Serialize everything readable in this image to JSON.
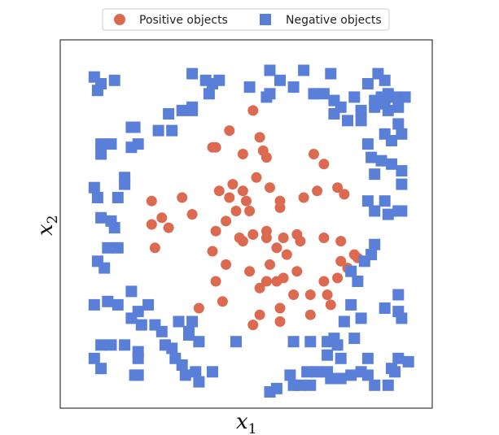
{
  "chart_data": {
    "type": "scatter",
    "title": "",
    "xlabel": "x",
    "xlabel_sub": "1",
    "ylabel": "x",
    "ylabel_sub": "2",
    "xlim": [
      0,
      1
    ],
    "ylim": [
      0,
      1
    ],
    "grid": false,
    "ticks": false,
    "legend_position": "top-center",
    "series": [
      {
        "name": "Positive objects",
        "marker": "circle",
        "color": "#db6a50",
        "points": [
          [
            0.45,
            0.78
          ],
          [
            0.52,
            0.84
          ],
          [
            0.54,
            0.76
          ],
          [
            0.4,
            0.73
          ],
          [
            0.41,
            0.73
          ],
          [
            0.49,
            0.71
          ],
          [
            0.55,
            0.72
          ],
          [
            0.56,
            0.7
          ],
          [
            0.7,
            0.71
          ],
          [
            0.73,
            0.68
          ],
          [
            0.53,
            0.64
          ],
          [
            0.57,
            0.61
          ],
          [
            0.46,
            0.62
          ],
          [
            0.42,
            0.6
          ],
          [
            0.49,
            0.6
          ],
          [
            0.71,
            0.6
          ],
          [
            0.77,
            0.61
          ],
          [
            0.79,
            0.59
          ],
          [
            0.22,
            0.57
          ],
          [
            0.31,
            0.58
          ],
          [
            0.45,
            0.58
          ],
          [
            0.5,
            0.57
          ],
          [
            0.6,
            0.57
          ],
          [
            0.67,
            0.58
          ],
          [
            0.6,
            0.55
          ],
          [
            0.47,
            0.54
          ],
          [
            0.51,
            0.54
          ],
          [
            0.25,
            0.52
          ],
          [
            0.34,
            0.53
          ],
          [
            0.22,
            0.5
          ],
          [
            0.27,
            0.49
          ],
          [
            0.44,
            0.51
          ],
          [
            0.41,
            0.48
          ],
          [
            0.56,
            0.48
          ],
          [
            0.65,
            0.47
          ],
          [
            0.52,
            0.47
          ],
          [
            0.48,
            0.46
          ],
          [
            0.49,
            0.45
          ],
          [
            0.56,
            0.46
          ],
          [
            0.61,
            0.46
          ],
          [
            0.66,
            0.45
          ],
          [
            0.73,
            0.46
          ],
          [
            0.78,
            0.45
          ],
          [
            0.59,
            0.43
          ],
          [
            0.62,
            0.41
          ],
          [
            0.23,
            0.43
          ],
          [
            0.4,
            0.42
          ],
          [
            0.82,
            0.41
          ],
          [
            0.44,
            0.38
          ],
          [
            0.57,
            0.38
          ],
          [
            0.78,
            0.39
          ],
          [
            0.83,
            0.4
          ],
          [
            0.51,
            0.36
          ],
          [
            0.65,
            0.36
          ],
          [
            0.8,
            0.37
          ],
          [
            0.41,
            0.33
          ],
          [
            0.56,
            0.33
          ],
          [
            0.59,
            0.33
          ],
          [
            0.61,
            0.34
          ],
          [
            0.54,
            0.31
          ],
          [
            0.73,
            0.33
          ],
          [
            0.77,
            0.34
          ],
          [
            0.74,
            0.29
          ],
          [
            0.43,
            0.27
          ],
          [
            0.64,
            0.29
          ],
          [
            0.6,
            0.25
          ],
          [
            0.69,
            0.29
          ],
          [
            0.54,
            0.23
          ],
          [
            0.36,
            0.25
          ],
          [
            0.69,
            0.23
          ],
          [
            0.75,
            0.26
          ],
          [
            0.6,
            0.21
          ],
          [
            0.52,
            0.2
          ]
        ]
      },
      {
        "name": "Negative objects",
        "marker": "square",
        "color": "#5a7fd9",
        "points": [
          [
            0.05,
            0.94
          ],
          [
            0.07,
            0.92
          ],
          [
            0.11,
            0.93
          ],
          [
            0.06,
            0.9
          ],
          [
            0.34,
            0.95
          ],
          [
            0.38,
            0.93
          ],
          [
            0.4,
            0.92
          ],
          [
            0.39,
            0.89
          ],
          [
            0.42,
            0.93
          ],
          [
            0.51,
            0.91
          ],
          [
            0.57,
            0.89
          ],
          [
            0.56,
            0.88
          ],
          [
            0.57,
            0.96
          ],
          [
            0.6,
            0.93
          ],
          [
            0.67,
            0.96
          ],
          [
            0.75,
            0.95
          ],
          [
            0.64,
            0.91
          ],
          [
            0.7,
            0.89
          ],
          [
            0.73,
            0.89
          ],
          [
            0.76,
            0.87
          ],
          [
            0.82,
            0.88
          ],
          [
            0.86,
            0.92
          ],
          [
            0.88,
            0.87
          ],
          [
            0.91,
            0.86
          ],
          [
            0.94,
            0.88
          ],
          [
            0.97,
            0.88
          ],
          [
            0.95,
            0.85
          ],
          [
            0.92,
            0.84
          ],
          [
            0.88,
            0.85
          ],
          [
            0.84,
            0.84
          ],
          [
            0.78,
            0.85
          ],
          [
            0.76,
            0.83
          ],
          [
            0.8,
            0.81
          ],
          [
            0.84,
            0.81
          ],
          [
            0.9,
            0.88
          ],
          [
            0.89,
            0.95
          ],
          [
            0.91,
            0.93
          ],
          [
            0.92,
            0.89
          ],
          [
            0.27,
            0.83
          ],
          [
            0.31,
            0.84
          ],
          [
            0.34,
            0.85
          ],
          [
            0.34,
            0.84
          ],
          [
            0.16,
            0.79
          ],
          [
            0.17,
            0.79
          ],
          [
            0.24,
            0.78
          ],
          [
            0.28,
            0.78
          ],
          [
            0.1,
            0.74
          ],
          [
            0.07,
            0.74
          ],
          [
            0.18,
            0.74
          ],
          [
            0.16,
            0.73
          ],
          [
            0.07,
            0.71
          ],
          [
            0.14,
            0.64
          ],
          [
            0.14,
            0.62
          ],
          [
            0.05,
            0.61
          ],
          [
            0.06,
            0.58
          ],
          [
            0.12,
            0.58
          ],
          [
            0.07,
            0.52
          ],
          [
            0.1,
            0.51
          ],
          [
            0.11,
            0.49
          ],
          [
            0.12,
            0.43
          ],
          [
            0.09,
            0.43
          ],
          [
            0.06,
            0.39
          ],
          [
            0.08,
            0.37
          ],
          [
            0.16,
            0.3
          ],
          [
            0.09,
            0.27
          ],
          [
            0.12,
            0.26
          ],
          [
            0.05,
            0.26
          ],
          [
            0.18,
            0.24
          ],
          [
            0.21,
            0.26
          ],
          [
            0.91,
            0.77
          ],
          [
            0.95,
            0.8
          ],
          [
            0.96,
            0.77
          ],
          [
            0.93,
            0.75
          ],
          [
            0.86,
            0.74
          ],
          [
            0.87,
            0.7
          ],
          [
            0.9,
            0.69
          ],
          [
            0.93,
            0.68
          ],
          [
            0.96,
            0.66
          ],
          [
            0.88,
            0.65
          ],
          [
            0.96,
            0.62
          ],
          [
            0.96,
            0.54
          ],
          [
            0.92,
            0.53
          ],
          [
            0.95,
            0.54
          ],
          [
            0.88,
            0.54
          ],
          [
            0.86,
            0.57
          ],
          [
            0.91,
            0.57
          ],
          [
            0.88,
            0.44
          ],
          [
            0.85,
            0.39
          ],
          [
            0.87,
            0.41
          ],
          [
            0.81,
            0.36
          ],
          [
            0.83,
            0.33
          ],
          [
            0.95,
            0.29
          ],
          [
            0.91,
            0.25
          ],
          [
            0.96,
            0.22
          ],
          [
            0.95,
            0.24
          ],
          [
            0.81,
            0.26
          ],
          [
            0.79,
            0.21
          ],
          [
            0.84,
            0.22
          ],
          [
            0.19,
            0.2
          ],
          [
            0.16,
            0.22
          ],
          [
            0.23,
            0.2
          ],
          [
            0.3,
            0.21
          ],
          [
            0.34,
            0.21
          ],
          [
            0.33,
            0.18
          ],
          [
            0.25,
            0.18
          ],
          [
            0.07,
            0.14
          ],
          [
            0.1,
            0.14
          ],
          [
            0.14,
            0.14
          ],
          [
            0.18,
            0.12
          ],
          [
            0.26,
            0.14
          ],
          [
            0.28,
            0.13
          ],
          [
            0.33,
            0.17
          ],
          [
            0.36,
            0.15
          ],
          [
            0.47,
            0.15
          ],
          [
            0.64,
            0.15
          ],
          [
            0.69,
            0.15
          ],
          [
            0.74,
            0.15
          ],
          [
            0.76,
            0.16
          ],
          [
            0.77,
            0.14
          ],
          [
            0.82,
            0.16
          ],
          [
            0.05,
            0.1
          ],
          [
            0.07,
            0.07
          ],
          [
            0.18,
            0.1
          ],
          [
            0.29,
            0.1
          ],
          [
            0.31,
            0.08
          ],
          [
            0.17,
            0.05
          ],
          [
            0.18,
            0.05
          ],
          [
            0.35,
            0.06
          ],
          [
            0.32,
            0.05
          ],
          [
            0.4,
            0.06
          ],
          [
            0.36,
            0.03
          ],
          [
            0.63,
            0.05
          ],
          [
            0.68,
            0.06
          ],
          [
            0.71,
            0.06
          ],
          [
            0.74,
            0.06
          ],
          [
            0.75,
            0.04
          ],
          [
            0.78,
            0.04
          ],
          [
            0.81,
            0.05
          ],
          [
            0.84,
            0.06
          ],
          [
            0.86,
            0.05
          ],
          [
            0.93,
            0.07
          ],
          [
            0.94,
            0.06
          ],
          [
            0.78,
            0.1
          ],
          [
            0.74,
            0.11
          ],
          [
            0.86,
            0.1
          ],
          [
            0.95,
            0.1
          ],
          [
            0.98,
            0.09
          ],
          [
            0.64,
            0.02
          ],
          [
            0.66,
            0.02
          ],
          [
            0.69,
            0.02
          ],
          [
            0.88,
            0.02
          ],
          [
            0.92,
            0.02
          ],
          [
            0.57,
            0.0
          ],
          [
            0.59,
            0.01
          ]
        ]
      }
    ]
  }
}
